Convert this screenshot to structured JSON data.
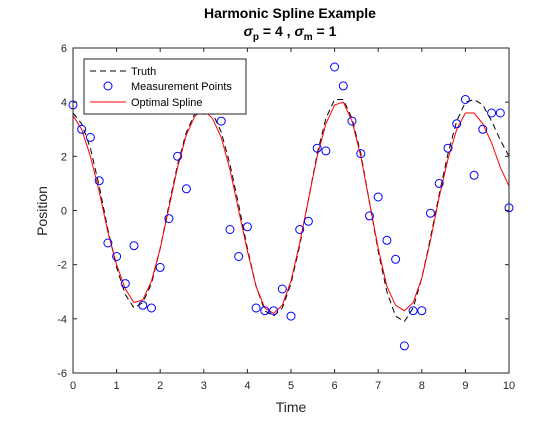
{
  "chart_data": {
    "type": "line",
    "title": "Harmonic Spline Example",
    "subtitle": {
      "sigma_symbol": "σ",
      "sub_p": "p",
      "p_value": " = 4  , ",
      "sub_m": "m",
      "m_value": " = 1"
    },
    "xlabel": "Time",
    "ylabel": "Position",
    "xlim": [
      0,
      10
    ],
    "ylim": [
      -6,
      6
    ],
    "xticks": [
      0,
      1,
      2,
      3,
      4,
      5,
      6,
      7,
      8,
      9,
      10
    ],
    "yticks": [
      -6,
      -4,
      -2,
      0,
      2,
      4,
      6
    ],
    "grid": false,
    "legend_position": "top-left",
    "series": [
      {
        "name": "Truth",
        "kind": "line",
        "style": "dashed",
        "color": "#000000",
        "x": [
          0,
          0.2,
          0.4,
          0.6,
          0.8,
          1.0,
          1.2,
          1.4,
          1.6,
          1.8,
          2.0,
          2.2,
          2.4,
          2.6,
          2.8,
          3.0,
          3.2,
          3.4,
          3.6,
          3.8,
          4.0,
          4.2,
          4.4,
          4.6,
          4.8,
          5.0,
          5.2,
          5.4,
          5.6,
          5.8,
          6.0,
          6.2,
          6.4,
          6.6,
          6.8,
          7.0,
          7.2,
          7.4,
          7.6,
          7.8,
          8.0,
          8.2,
          8.4,
          8.6,
          8.8,
          9.0,
          9.2,
          9.4,
          9.6,
          9.8,
          10.0
        ],
        "y": [
          3.6,
          3.2,
          2.3,
          0.9,
          -0.7,
          -2.1,
          -3.1,
          -3.6,
          -3.4,
          -2.7,
          -1.4,
          0.2,
          1.7,
          2.9,
          3.6,
          3.8,
          3.6,
          2.9,
          1.7,
          0.2,
          -1.4,
          -2.8,
          -3.7,
          -3.9,
          -3.6,
          -2.7,
          -1.3,
          0.4,
          2.1,
          3.4,
          4.1,
          4.1,
          3.4,
          2.1,
          0.3,
          -1.5,
          -3.0,
          -3.9,
          -4.1,
          -3.6,
          -2.5,
          -1.0,
          0.6,
          2.1,
          3.3,
          4.0,
          4.1,
          3.9,
          3.3,
          2.6,
          2.0
        ]
      },
      {
        "name": "Measurement Points",
        "kind": "scatter",
        "marker": "circle",
        "color": "#0000ff",
        "x": [
          0.0,
          0.2,
          0.4,
          0.6,
          0.8,
          1.0,
          1.2,
          1.4,
          1.6,
          1.8,
          2.0,
          2.2,
          2.4,
          2.6,
          2.8,
          3.0,
          3.2,
          3.4,
          3.6,
          3.8,
          4.0,
          4.2,
          4.4,
          4.6,
          4.8,
          5.0,
          5.2,
          5.4,
          5.6,
          5.8,
          6.0,
          6.2,
          6.4,
          6.6,
          6.8,
          7.0,
          7.2,
          7.4,
          7.6,
          7.8,
          8.0,
          8.2,
          8.4,
          8.6,
          8.8,
          9.0,
          9.2,
          9.4,
          9.6,
          9.8,
          10.0
        ],
        "y": [
          3.9,
          3.0,
          2.7,
          1.1,
          -1.2,
          -1.7,
          -2.7,
          -1.3,
          -3.5,
          -3.6,
          -2.1,
          -0.3,
          2.0,
          0.8,
          3.7,
          3.7,
          3.7,
          3.3,
          -0.7,
          -1.7,
          -0.6,
          -3.6,
          -3.7,
          -3.7,
          -2.9,
          -3.9,
          -0.7,
          -0.4,
          2.3,
          2.2,
          5.3,
          4.6,
          3.3,
          2.1,
          -0.2,
          0.5,
          -1.1,
          -1.8,
          -5.0,
          -3.7,
          -3.7,
          -0.1,
          1.0,
          2.3,
          3.2,
          4.1,
          1.3,
          3.0,
          3.6,
          3.6,
          0.1
        ]
      },
      {
        "name": "Optimal Spline",
        "kind": "line",
        "style": "solid",
        "color": "#ff0000",
        "x": [
          0,
          0.2,
          0.4,
          0.6,
          0.8,
          1.0,
          1.2,
          1.4,
          1.6,
          1.8,
          2.0,
          2.2,
          2.4,
          2.6,
          2.8,
          3.0,
          3.2,
          3.4,
          3.6,
          3.8,
          4.0,
          4.2,
          4.4,
          4.6,
          4.8,
          5.0,
          5.2,
          5.4,
          5.6,
          5.8,
          6.0,
          6.2,
          6.4,
          6.6,
          6.8,
          7.0,
          7.2,
          7.4,
          7.6,
          7.8,
          8.0,
          8.2,
          8.4,
          8.6,
          8.8,
          9.0,
          9.2,
          9.4,
          9.6,
          9.8,
          10.0
        ],
        "y": [
          3.5,
          3.0,
          2.0,
          0.7,
          -0.8,
          -2.0,
          -2.9,
          -3.4,
          -3.3,
          -2.6,
          -1.4,
          0.1,
          1.6,
          2.8,
          3.5,
          3.7,
          3.4,
          2.7,
          1.5,
          0.0,
          -1.5,
          -2.8,
          -3.6,
          -3.8,
          -3.5,
          -2.6,
          -1.2,
          0.4,
          2.0,
          3.2,
          3.9,
          4.0,
          3.3,
          2.0,
          0.3,
          -1.4,
          -2.8,
          -3.5,
          -3.7,
          -3.4,
          -2.5,
          -1.1,
          0.5,
          1.9,
          3.0,
          3.6,
          3.6,
          3.2,
          2.5,
          1.6,
          0.9
        ]
      }
    ]
  }
}
